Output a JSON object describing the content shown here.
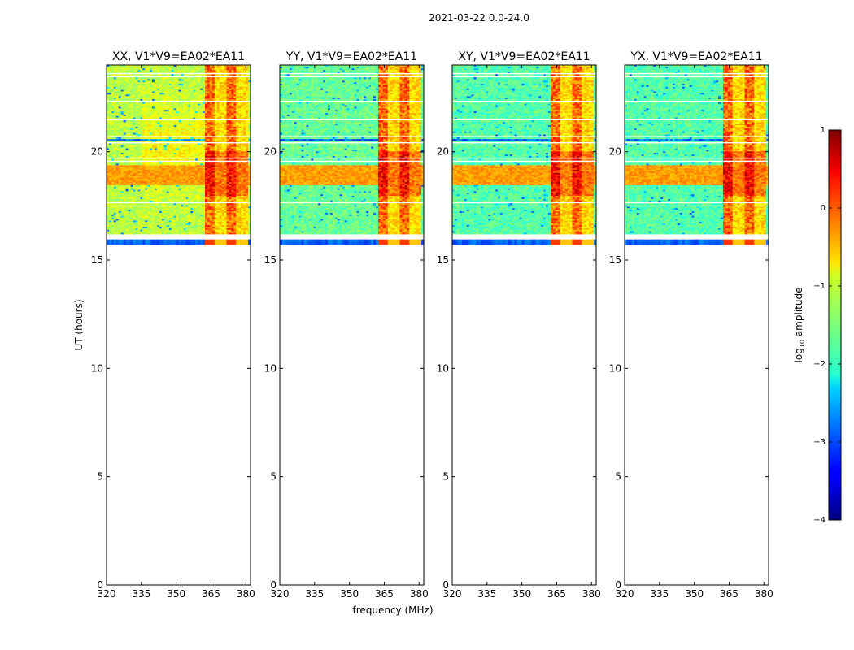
{
  "figure": {
    "suptitle": "2021-03-22 0.0-24.0",
    "xlabel": "frequency (MHz)",
    "ylabel": "UT (hours)"
  },
  "chart_data": {
    "type": "heatmap",
    "xlim": [
      320,
      382
    ],
    "ylim": [
      0,
      24
    ],
    "xticks": [
      320,
      335,
      350,
      365,
      380
    ],
    "yticks": [
      0,
      5,
      10,
      15,
      20
    ],
    "data_time_range": [
      15.7,
      24.0
    ],
    "rfi_band": [
      362,
      381
    ],
    "bright_band": [
      18.5,
      19.4
    ],
    "panels": [
      {
        "title": "XX, V1*V9=EA02*EA11",
        "bg_level": -1.2
      },
      {
        "title": "YY, V1*V9=EA02*EA11",
        "bg_level": -1.6
      },
      {
        "title": "XY, V1*V9=EA02*EA11",
        "bg_level": -1.7
      },
      {
        "title": "YX, V1*V9=EA02*EA11",
        "bg_level": -1.7
      }
    ],
    "colorbar": {
      "label": "log10 amplitude",
      "label_main": "log",
      "label_sub": "10",
      "label_rest": " amplitude",
      "range": [
        -4,
        1
      ],
      "ticks": [
        "1",
        "0",
        "−1",
        "−2",
        "−3",
        "−4"
      ],
      "tick_values": [
        1,
        0,
        -1,
        -2,
        -3,
        -4
      ],
      "colormap": "jet"
    }
  }
}
